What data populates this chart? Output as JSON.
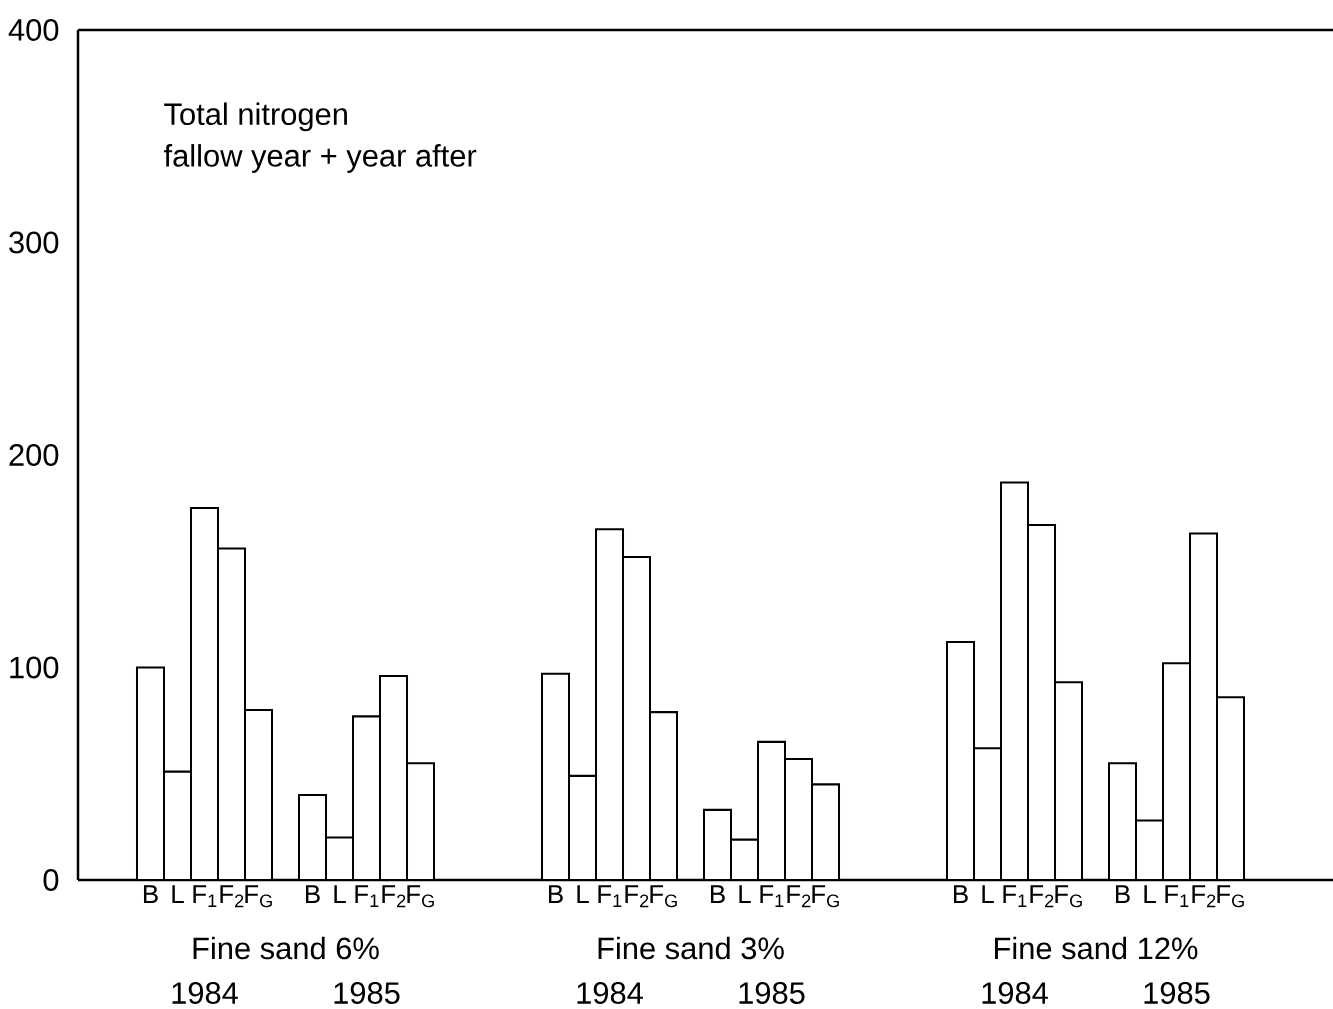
{
  "chart_data": {
    "type": "bar",
    "title": "Total nitrogen",
    "subtitle": "fallow year + year after",
    "categories": [
      "B",
      "L",
      "F$_{1}$",
      "F$_{2}$",
      "F$_{G}$",
      null,
      "B",
      "L",
      "F$_{1}$",
      "F$_{2}$",
      "F$_{G}$",
      null,
      null,
      null,
      null,
      "B",
      "L",
      "F$_{1}$",
      "F$_{2}$",
      "F$_{G}$",
      null,
      "B",
      "L",
      "F$_{1}$",
      "F$_{2}$",
      "F$_{G}$",
      null,
      null,
      null,
      null,
      "B",
      "L",
      "F$_{1}$",
      "F$_{2}$",
      "F$_{G}$",
      null,
      "B",
      "L",
      "F$_{1}$",
      "F$_{2}$",
      "F$_{G}$"
    ],
    "values": [
      100,
      51,
      175,
      156,
      80,
      null,
      40,
      20,
      77,
      96,
      55,
      null,
      null,
      null,
      null,
      97,
      49,
      165,
      152,
      79,
      null,
      33,
      19,
      65,
      57,
      45,
      null,
      null,
      null,
      null,
      112,
      62,
      187,
      167,
      93,
      null,
      55,
      28,
      102,
      163,
      86
    ],
    "color": "#ffffff",
    "ylim": [
      0,
      400
    ],
    "yticks": [
      0,
      100,
      200,
      300,
      400
    ],
    "annotations": [
      "Fine sand 6%",
      "1984",
      "1985",
      "Fine sand 3%",
      "1984",
      "1985",
      "Fine sand 12%",
      "1984",
      "1985"
    ]
  }
}
